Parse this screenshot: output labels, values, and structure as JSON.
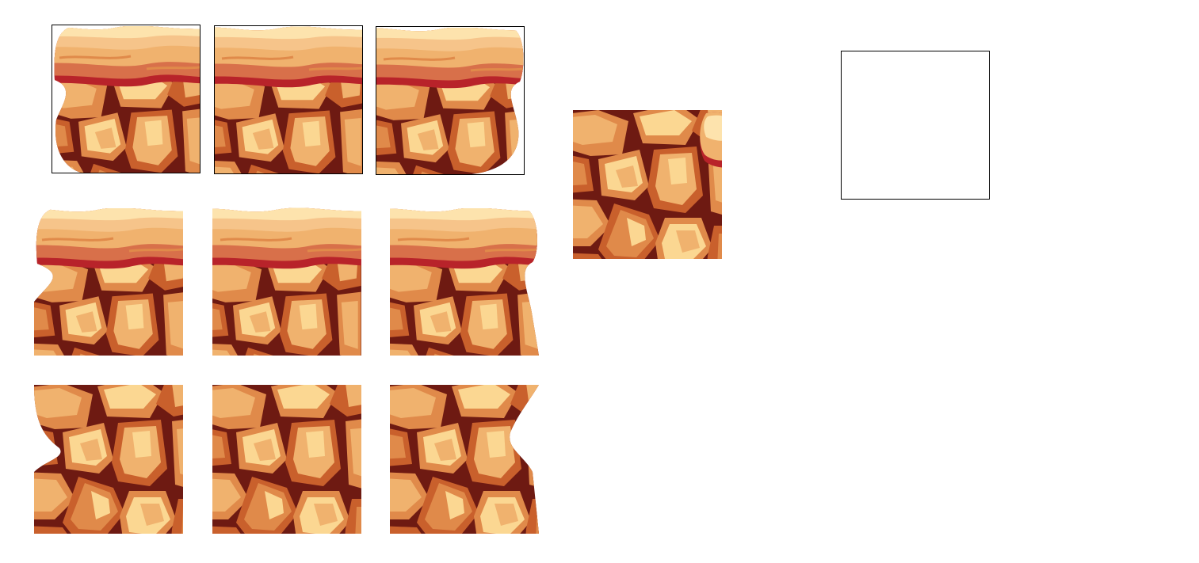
{
  "sheet": {
    "palette": {
      "outline": "#6e1a12",
      "rock_dark": "#c9602c",
      "rock_mid": "#e08a4a",
      "rock_light": "#f0b26e",
      "rock_highlight": "#fbd792",
      "cap_light": "#f6c48a",
      "cap_cream": "#fde3ad",
      "cap_red": "#b8232a",
      "cap_shadow": "#d8704a"
    },
    "tiles": [
      {
        "row": 1,
        "col": 1,
        "kind": "top-cap",
        "edge": "left",
        "framed": true
      },
      {
        "row": 1,
        "col": 2,
        "kind": "top-cap",
        "edge": "middle",
        "framed": true
      },
      {
        "row": 1,
        "col": 3,
        "kind": "top-cap",
        "edge": "right",
        "framed": true
      },
      {
        "row": 2,
        "col": 1,
        "kind": "top-cap-body",
        "edge": "left",
        "framed": false
      },
      {
        "row": 2,
        "col": 2,
        "kind": "top-cap-body",
        "edge": "middle",
        "framed": false
      },
      {
        "row": 2,
        "col": 3,
        "kind": "top-cap-body",
        "edge": "right",
        "framed": false
      },
      {
        "row": 3,
        "col": 1,
        "kind": "rock-body",
        "edge": "left",
        "framed": false
      },
      {
        "row": 3,
        "col": 2,
        "kind": "rock-body",
        "edge": "middle",
        "framed": false
      },
      {
        "row": 3,
        "col": 3,
        "kind": "rock-body",
        "edge": "right",
        "framed": false
      },
      {
        "row": 0,
        "col": 4,
        "kind": "rock-fill-corner",
        "edge": "inner",
        "framed": false
      }
    ],
    "empty_slot": {
      "present": true
    }
  }
}
